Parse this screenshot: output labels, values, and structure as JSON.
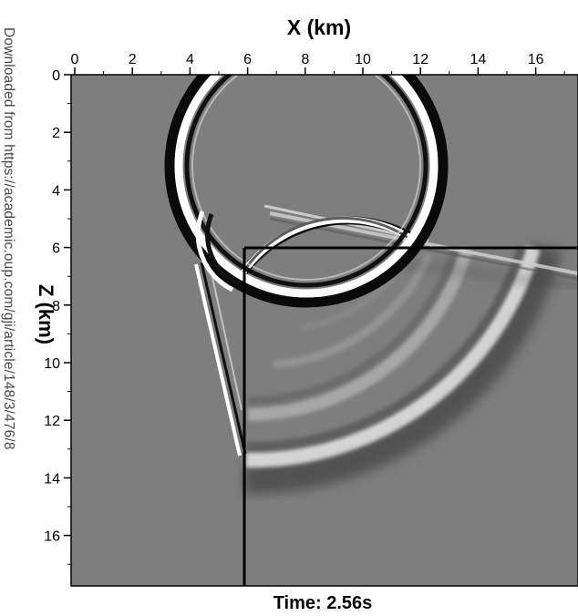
{
  "watermark": "Downloaded from https://academic.oup.com/gji/article/148/3/476/8",
  "figure": {
    "x_axis_title": "X (km)",
    "y_axis_title": "Z (km)",
    "caption": "Time: 2.56s"
  },
  "chart_data": {
    "type": "heatmap",
    "title": "",
    "xlabel": "X (km)",
    "ylabel": "Z (km)",
    "xlim": [
      0,
      17.5
    ],
    "ylim": [
      0,
      17.5
    ],
    "y_inverted": true,
    "x_ticks": [
      0,
      2,
      4,
      6,
      8,
      10,
      12,
      14,
      16
    ],
    "y_ticks": [
      0,
      2,
      4,
      6,
      8,
      10,
      12,
      14,
      16
    ],
    "colormap": "grayscale",
    "grid": false,
    "time_annotation": "Time: 2.56s",
    "model_boundaries": [
      {
        "type": "vertical",
        "x": 5.9,
        "z_from": 6,
        "z_to": 17.5
      },
      {
        "type": "horizontal",
        "z": 6,
        "x_from": 5.9,
        "x_to": 17.5
      }
    ],
    "wavefronts": [
      {
        "type": "circle",
        "center": [
          7.9,
          3.4
        ],
        "radius": 4.6,
        "region": "upper layer"
      },
      {
        "type": "arc",
        "center": [
          7.9,
          5.5
        ],
        "radius": 4.5,
        "region": "reflected"
      },
      {
        "type": "arc",
        "center": [
          5.2,
          6.3
        ],
        "radius": 7.8,
        "region": "lower block"
      },
      {
        "type": "arc",
        "center": [
          5.2,
          6.3
        ],
        "radius": 10.3,
        "region": "lower block"
      },
      {
        "type": "head_wave",
        "from": [
          4.3,
          7.4
        ],
        "to": [
          5.8,
          13.7
        ]
      },
      {
        "type": "head_wave",
        "from": [
          6.4,
          4.7
        ],
        "to": [
          17.5,
          6.9
        ]
      }
    ]
  }
}
